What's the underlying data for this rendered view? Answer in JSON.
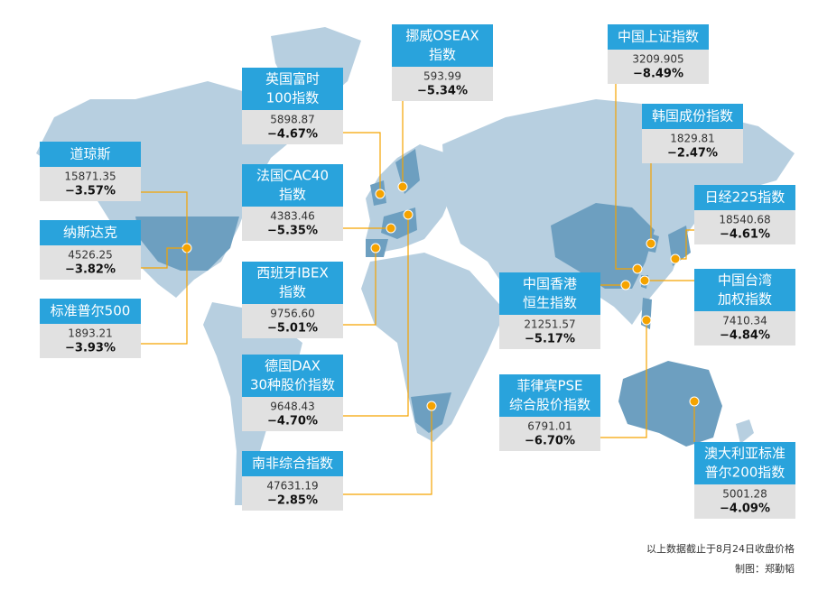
{
  "indices": [
    {
      "title_lines": [
        "道琼斯"
      ],
      "value": "15871.35",
      "change": "−3.57%"
    },
    {
      "title_lines": [
        "纳斯达克"
      ],
      "value": "4526.25",
      "change": "−3.82%"
    },
    {
      "title_lines": [
        "标准普尔500"
      ],
      "value": "1893.21",
      "change": "−3.93%"
    },
    {
      "title_lines": [
        "英国富时",
        "100指数"
      ],
      "value": "5898.87",
      "change": "−4.67%"
    },
    {
      "title_lines": [
        "法国CAC40",
        "指数"
      ],
      "value": "4383.46",
      "change": "−5.35%"
    },
    {
      "title_lines": [
        "西班牙IBEX",
        "指数"
      ],
      "value": "9756.60",
      "change": "−5.01%"
    },
    {
      "title_lines": [
        "德国DAX",
        "30种股价指数"
      ],
      "value": "9648.43",
      "change": "−4.70%"
    },
    {
      "title_lines": [
        "南非综合指数"
      ],
      "value": "47631.19",
      "change": "−2.85%"
    },
    {
      "title_lines": [
        "挪威OSEAX",
        "指数"
      ],
      "value": "593.99",
      "change": "−5.34%"
    },
    {
      "title_lines": [
        "中国上证指数"
      ],
      "value": "3209.905",
      "change": "−8.49%"
    },
    {
      "title_lines": [
        "韩国成份指数"
      ],
      "value": "1829.81",
      "change": "−2.47%"
    },
    {
      "title_lines": [
        "日经225指数"
      ],
      "value": "18540.68",
      "change": "−4.61%"
    },
    {
      "title_lines": [
        "中国香港",
        "恒生指数"
      ],
      "value": "21251.57",
      "change": "−5.17%"
    },
    {
      "title_lines": [
        "中国台湾",
        "加权指数"
      ],
      "value": "7410.34",
      "change": "−4.84%"
    },
    {
      "title_lines": [
        "菲律宾PSE",
        "综合股价指数"
      ],
      "value": "6791.01",
      "change": "−6.70%"
    },
    {
      "title_lines": [
        "澳大利亚标准",
        "普尔200指数"
      ],
      "value": "5001.28",
      "change": "−4.09%"
    }
  ],
  "footnote": "以上数据截止于8月24日收盘价格",
  "credit": "制图：郑勤韬"
}
